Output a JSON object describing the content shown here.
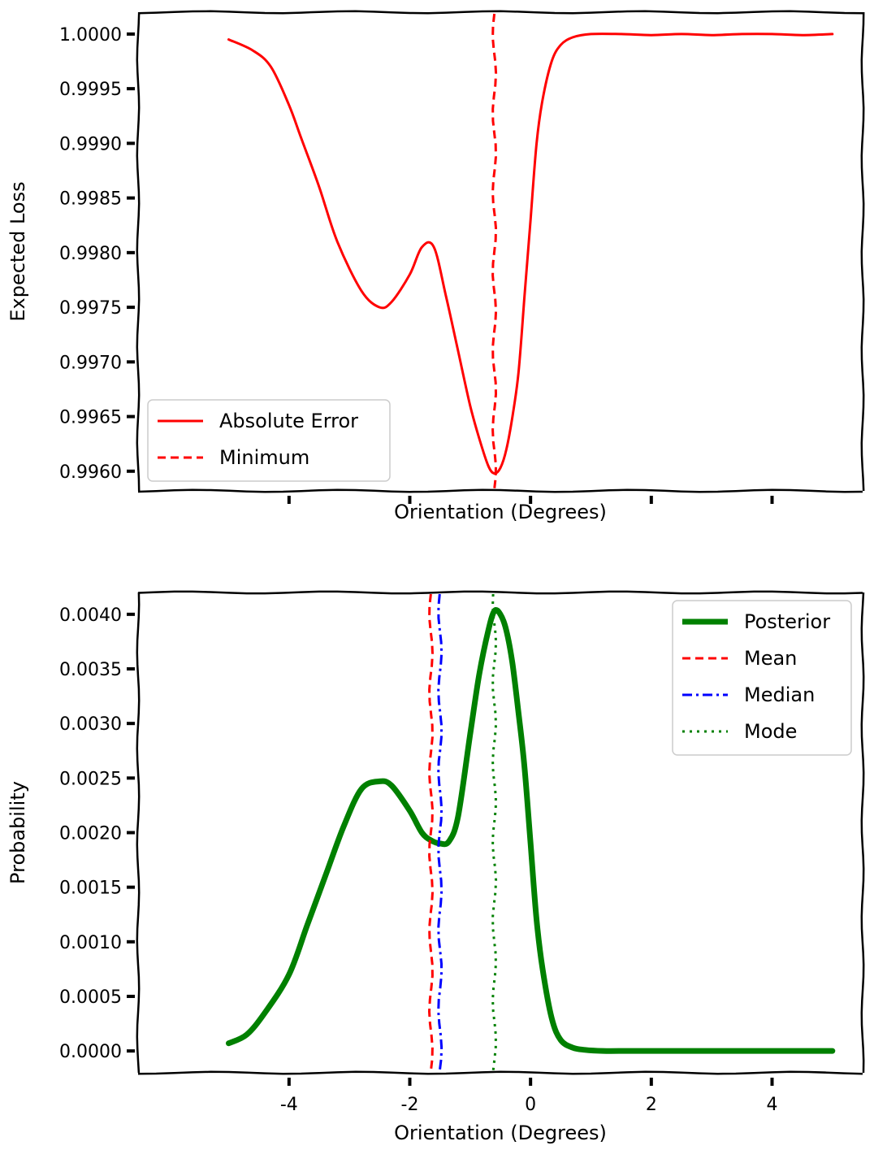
{
  "chart_data": [
    {
      "type": "line",
      "title": "",
      "xlabel": "Orientation (Degrees)",
      "ylabel": "Expected Loss",
      "xlim": [
        -6.5,
        5.5
      ],
      "ylim": [
        0.99582,
        1.0002
      ],
      "xticks": [
        -4,
        -2,
        0,
        2,
        4
      ],
      "x_tick_labels_visible": false,
      "yticks": [
        0.996,
        0.9965,
        0.997,
        0.9975,
        0.998,
        0.9985,
        0.999,
        0.9995,
        1.0
      ],
      "ytick_labels": [
        "0.9960",
        "0.9965",
        "0.9970",
        "0.9975",
        "0.9980",
        "0.9985",
        "0.9990",
        "0.9995",
        "1.0000"
      ],
      "grid": false,
      "legend_position": "lower-left",
      "series": [
        {
          "name": "Absolute Error",
          "color": "#ff0000",
          "style": "solid",
          "x": [
            -5.0,
            -4.6,
            -4.3,
            -4.0,
            -3.8,
            -3.5,
            -3.2,
            -2.8,
            -2.5,
            -2.3,
            -2.0,
            -1.8,
            -1.6,
            -1.4,
            -1.2,
            -1.0,
            -0.85,
            -0.7,
            -0.6,
            -0.5,
            -0.4,
            -0.3,
            -0.2,
            -0.1,
            0.0,
            0.1,
            0.2,
            0.35,
            0.5,
            0.7,
            1.0,
            1.5,
            2.0,
            2.5,
            3.0,
            3.5,
            4.0,
            4.5,
            5.0
          ],
          "y": [
            0.99995,
            0.99985,
            0.9997,
            0.99935,
            0.99905,
            0.9986,
            0.9981,
            0.99765,
            0.9975,
            0.99755,
            0.9978,
            0.99805,
            0.99805,
            0.9976,
            0.9971,
            0.9966,
            0.9963,
            0.99605,
            0.99598,
            0.99603,
            0.9962,
            0.9965,
            0.9969,
            0.9976,
            0.9983,
            0.999,
            0.9994,
            0.99975,
            0.9999,
            0.99997,
            1.0,
            1.0,
            0.99999,
            1.0,
            0.99999,
            1.0,
            1.0,
            0.99999,
            1.0
          ]
        },
        {
          "name": "Minimum",
          "color": "#ff0000",
          "style": "dashed",
          "vertical_line_x": -0.6
        }
      ]
    },
    {
      "type": "line",
      "title": "",
      "xlabel": "Orientation (Degrees)",
      "ylabel": "Probability",
      "xlim": [
        -6.5,
        5.5
      ],
      "ylim": [
        -0.0002,
        0.0042
      ],
      "xticks": [
        -4,
        -2,
        0,
        2,
        4
      ],
      "xtick_labels": [
        "-4",
        "-2",
        "0",
        "2",
        "4"
      ],
      "yticks": [
        0.0,
        0.0005,
        0.001,
        0.0015,
        0.002,
        0.0025,
        0.003,
        0.0035,
        0.004
      ],
      "ytick_labels": [
        "0.0000",
        "0.0005",
        "0.0010",
        "0.0015",
        "0.0020",
        "0.0025",
        "0.0030",
        "0.0035",
        "0.0040"
      ],
      "grid": false,
      "legend_position": "upper-right",
      "series": [
        {
          "name": "Posterior",
          "color": "#008000",
          "style": "solid-thick",
          "x": [
            -5.0,
            -4.7,
            -4.4,
            -4.0,
            -3.7,
            -3.4,
            -3.1,
            -2.8,
            -2.5,
            -2.3,
            -2.0,
            -1.8,
            -1.65,
            -1.5,
            -1.35,
            -1.2,
            -1.0,
            -0.85,
            -0.7,
            -0.6,
            -0.5,
            -0.4,
            -0.3,
            -0.2,
            -0.1,
            0.0,
            0.1,
            0.2,
            0.35,
            0.5,
            0.7,
            0.9,
            1.2,
            1.6,
            2.0,
            2.5,
            3.0,
            3.5,
            4.0,
            4.5,
            5.0
          ],
          "y": [
            7e-05,
            0.00015,
            0.00035,
            0.0007,
            0.00115,
            0.0016,
            0.00205,
            0.0024,
            0.00247,
            0.00243,
            0.0022,
            0.002,
            0.00193,
            0.0019,
            0.00192,
            0.00215,
            0.0029,
            0.00345,
            0.00385,
            0.00403,
            0.004,
            0.00385,
            0.00355,
            0.0031,
            0.0026,
            0.0019,
            0.0012,
            0.00075,
            0.0003,
            0.0001,
            3e-05,
            1e-05,
            0.0,
            0.0,
            0.0,
            0.0,
            0.0,
            0.0,
            0.0,
            0.0,
            0.0
          ]
        },
        {
          "name": "Mean",
          "color": "#ff0000",
          "style": "dashed",
          "vertical_line_x": -1.65
        },
        {
          "name": "Median",
          "color": "#0000ff",
          "style": "dashdot",
          "vertical_line_x": -1.5
        },
        {
          "name": "Mode",
          "color": "#008000",
          "style": "dotted",
          "vertical_line_x": -0.6
        }
      ]
    }
  ]
}
